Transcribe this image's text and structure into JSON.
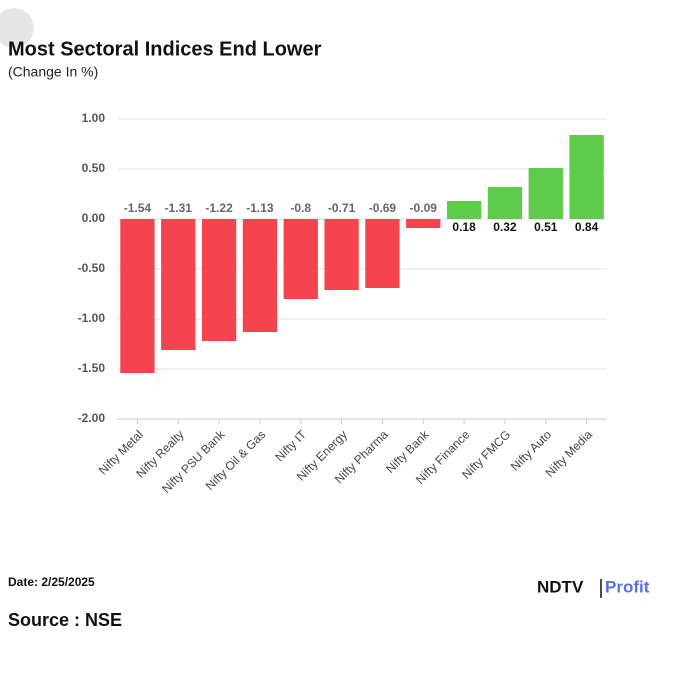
{
  "chart_data": {
    "type": "bar",
    "title": "Most Sectoral Indices End Lower",
    "subtitle": "(Change In %)",
    "categories": [
      "Nifty Metal",
      "Nifty Realty",
      "Nifty PSU Bank",
      "Nifty Oil & Gas",
      "Nifty IT",
      "Nifty Energy",
      "Nifty Pharma",
      "Nifty Bank",
      "Nifty Finance",
      "Nifty FMCG",
      "Nifty Auto",
      "Nifty Media"
    ],
    "values": [
      -1.54,
      -1.31,
      -1.22,
      -1.13,
      -0.8,
      -0.71,
      -0.69,
      -0.09,
      0.18,
      0.32,
      0.51,
      0.84
    ],
    "color_negative": "#f5444e",
    "color_positive": "#5ecb4b",
    "ylim": [
      -2,
      1
    ],
    "yticks": [
      {
        "value": -2,
        "label": "-2.00"
      },
      {
        "value": -1.5,
        "label": "-1.50"
      },
      {
        "value": -1,
        "label": "-1.00"
      },
      {
        "value": -0.5,
        "label": "-0.50"
      },
      {
        "value": 0,
        "label": "0.00"
      },
      {
        "value": 0.5,
        "label": "0.50"
      },
      {
        "value": 1,
        "label": "1.00"
      }
    ],
    "grid": true
  },
  "footer": {
    "date": "Date: 2/25/2025",
    "source": "Source : NSE",
    "logo_left": "NDTV",
    "logo_right": "Profit"
  }
}
